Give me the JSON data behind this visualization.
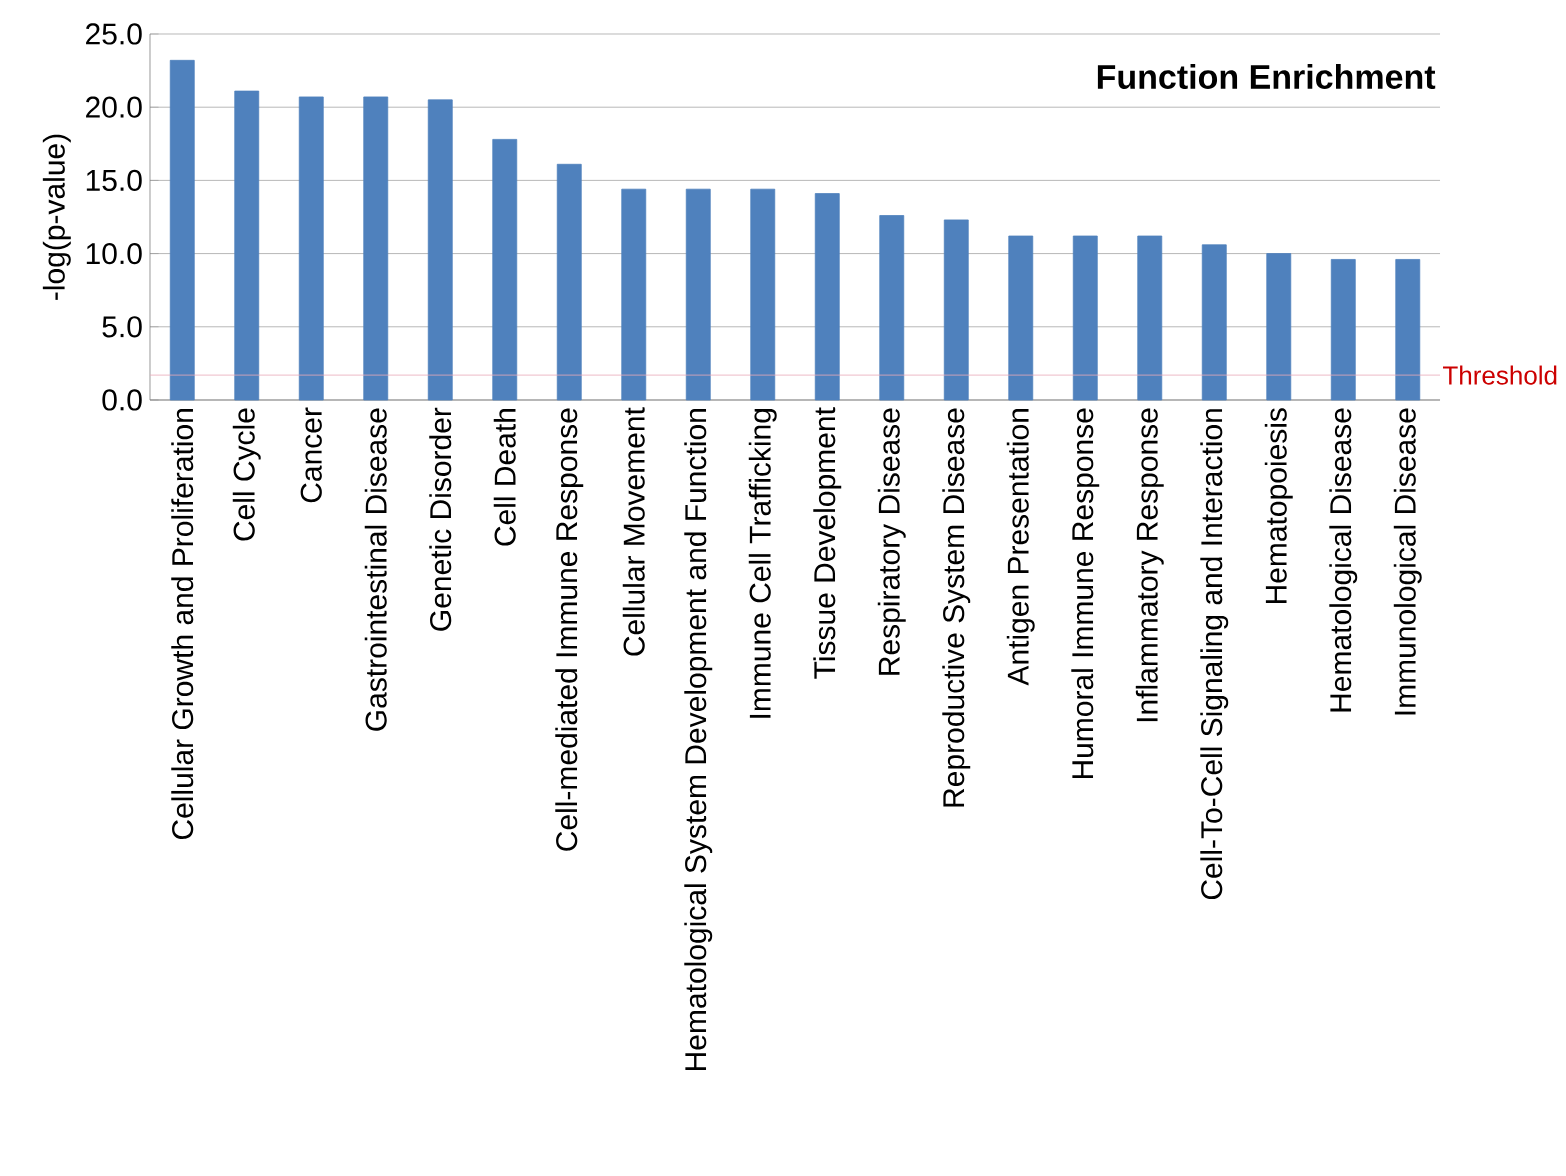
{
  "chart_data": {
    "type": "bar",
    "title": "Function Enrichment",
    "ylabel": "-log(p-value)",
    "categories": [
      "Cellular Growth and Proliferation",
      "Cell Cycle",
      "Cancer",
      "Gastrointestinal Disease",
      "Genetic Disorder",
      "Cell Death",
      "Cell-mediated Immune Response",
      "Cellular Movement",
      "Hematological System Development and Function",
      "Immune Cell Trafficking",
      "Tissue Development",
      "Respiratory Disease",
      "Reproductive System Disease",
      "Antigen Presentation",
      "Humoral Immune Response",
      "Inflammatory Response",
      "Cell-To-Cell Signaling and Interaction",
      "Hematopoiesis",
      "Hematological Disease",
      "Immunological Disease"
    ],
    "values": [
      23.2,
      21.1,
      20.7,
      20.7,
      20.5,
      17.8,
      16.1,
      14.4,
      14.4,
      14.4,
      14.1,
      12.6,
      12.3,
      11.2,
      11.2,
      11.2,
      10.6,
      10.0,
      9.6,
      9.6
    ],
    "color": "#4f81bd",
    "ylim": [
      0,
      25
    ],
    "yticks": [
      {
        "value": 0,
        "label": "0.0"
      },
      {
        "value": 5,
        "label": "5.0"
      },
      {
        "value": 10,
        "label": "10.0"
      },
      {
        "value": 15,
        "label": "15.0"
      },
      {
        "value": 20,
        "label": "20.0"
      },
      {
        "value": 25,
        "label": "25.0"
      }
    ],
    "grid": "y",
    "ref_lines": [
      {
        "axis": "y",
        "value": 1.7,
        "label": "Threshold",
        "color": "#e8a8b8"
      }
    ]
  }
}
